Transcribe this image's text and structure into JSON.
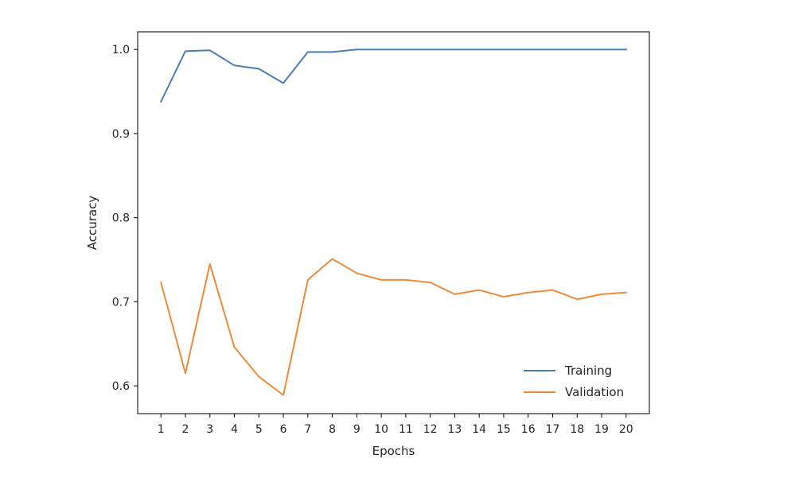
{
  "chart_data": {
    "type": "line",
    "title": "",
    "xlabel": "Epochs",
    "ylabel": "Accuracy",
    "x": [
      1,
      2,
      3,
      4,
      5,
      6,
      7,
      8,
      9,
      10,
      11,
      12,
      13,
      14,
      15,
      16,
      17,
      18,
      19,
      20
    ],
    "xticks": [
      "1",
      "2",
      "3",
      "4",
      "5",
      "6",
      "7",
      "8",
      "9",
      "10",
      "11",
      "12",
      "13",
      "14",
      "15",
      "16",
      "17",
      "18",
      "19",
      "20"
    ],
    "xlim": [
      0.05,
      20.95
    ],
    "ylim": [
      0.567,
      1.021
    ],
    "yticks": [
      0.6,
      0.7,
      0.8,
      0.9,
      1.0
    ],
    "ytick_labels": [
      "0.6",
      "0.7",
      "0.8",
      "0.9",
      "1.0"
    ],
    "grid": false,
    "legend_position": "lower-right",
    "series": [
      {
        "name": "Training",
        "color": "#4a7db5",
        "values": [
          0.938,
          0.998,
          0.999,
          0.981,
          0.977,
          0.96,
          0.997,
          0.997,
          1.0,
          1.0,
          1.0,
          1.0,
          1.0,
          1.0,
          1.0,
          1.0,
          1.0,
          1.0,
          1.0,
          1.0
        ]
      },
      {
        "name": "Validation",
        "color": "#ef8a3a",
        "values": [
          0.723,
          0.615,
          0.745,
          0.646,
          0.611,
          0.589,
          0.726,
          0.751,
          0.734,
          0.726,
          0.726,
          0.723,
          0.709,
          0.714,
          0.706,
          0.711,
          0.714,
          0.703,
          0.709,
          0.711
        ]
      }
    ]
  }
}
